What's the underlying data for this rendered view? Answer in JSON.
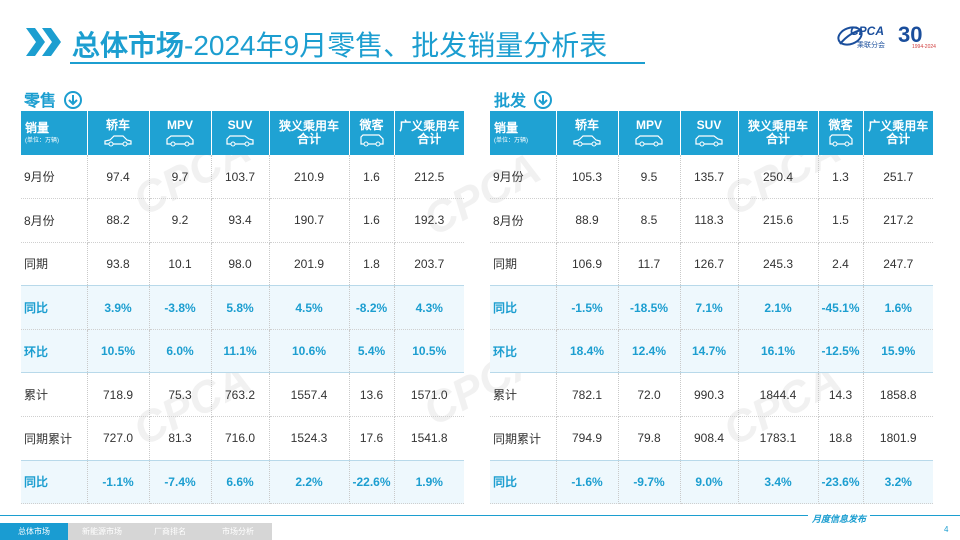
{
  "header": {
    "title_bold": "总体市场",
    "title_rest": "-2024年9月零售、批发销量分析表",
    "logo_text": "CPCA",
    "logo_sub": "乘联分会",
    "anniversary": "30",
    "anniversary_sub": "1994-2024"
  },
  "columns": {
    "row_header": "销量",
    "row_header_unit": "(单位：万辆)",
    "sedan": "轿车",
    "mpv": "MPV",
    "suv": "SUV",
    "narrow_l1": "狭义乘用车",
    "narrow_l2": "合计",
    "mini": "微客",
    "broad_l1": "广义乘用车",
    "broad_l2": "合计"
  },
  "retail": {
    "label": "零售",
    "rows": [
      {
        "label": "9月份",
        "sedan": "97.4",
        "mpv": "9.7",
        "suv": "103.7",
        "narrow": "210.9",
        "mini": "1.6",
        "broad": "212.5"
      },
      {
        "label": "8月份",
        "sedan": "88.2",
        "mpv": "9.2",
        "suv": "93.4",
        "narrow": "190.7",
        "mini": "1.6",
        "broad": "192.3"
      },
      {
        "label": "同期",
        "sedan": "93.8",
        "mpv": "10.1",
        "suv": "98.0",
        "narrow": "201.9",
        "mini": "1.8",
        "broad": "203.7"
      },
      {
        "label": "同比",
        "sedan": "3.9%",
        "mpv": "-3.8%",
        "suv": "5.8%",
        "narrow": "4.5%",
        "mini": "-8.2%",
        "broad": "4.3%"
      },
      {
        "label": "环比",
        "sedan": "10.5%",
        "mpv": "6.0%",
        "suv": "11.1%",
        "narrow": "10.6%",
        "mini": "5.4%",
        "broad": "10.5%"
      },
      {
        "label": "累计",
        "sedan": "718.9",
        "mpv": "75.3",
        "suv": "763.2",
        "narrow": "1557.4",
        "mini": "13.6",
        "broad": "1571.0"
      },
      {
        "label": "同期累计",
        "sedan": "727.0",
        "mpv": "81.3",
        "suv": "716.0",
        "narrow": "1524.3",
        "mini": "17.6",
        "broad": "1541.8"
      },
      {
        "label": "同比",
        "sedan": "-1.1%",
        "mpv": "-7.4%",
        "suv": "6.6%",
        "narrow": "2.2%",
        "mini": "-22.6%",
        "broad": "1.9%"
      }
    ]
  },
  "wholesale": {
    "label": "批发",
    "rows": [
      {
        "label": "9月份",
        "sedan": "105.3",
        "mpv": "9.5",
        "suv": "135.7",
        "narrow": "250.4",
        "mini": "1.3",
        "broad": "251.7"
      },
      {
        "label": "8月份",
        "sedan": "88.9",
        "mpv": "8.5",
        "suv": "118.3",
        "narrow": "215.6",
        "mini": "1.5",
        "broad": "217.2"
      },
      {
        "label": "同期",
        "sedan": "106.9",
        "mpv": "11.7",
        "suv": "126.7",
        "narrow": "245.3",
        "mini": "2.4",
        "broad": "247.7"
      },
      {
        "label": "同比",
        "sedan": "-1.5%",
        "mpv": "-18.5%",
        "suv": "7.1%",
        "narrow": "2.1%",
        "mini": "-45.1%",
        "broad": "1.6%"
      },
      {
        "label": "环比",
        "sedan": "18.4%",
        "mpv": "12.4%",
        "suv": "14.7%",
        "narrow": "16.1%",
        "mini": "-12.5%",
        "broad": "15.9%"
      },
      {
        "label": "累计",
        "sedan": "782.1",
        "mpv": "72.0",
        "suv": "990.3",
        "narrow": "1844.4",
        "mini": "14.3",
        "broad": "1858.8"
      },
      {
        "label": "同期累计",
        "sedan": "794.9",
        "mpv": "79.8",
        "suv": "908.4",
        "narrow": "1783.1",
        "mini": "18.8",
        "broad": "1801.9"
      },
      {
        "label": "同比",
        "sedan": "-1.6%",
        "mpv": "-9.7%",
        "suv": "9.0%",
        "narrow": "3.4%",
        "mini": "-23.6%",
        "broad": "3.2%"
      }
    ]
  },
  "footer": {
    "tabs": [
      "总体市场",
      "新能源市场",
      "厂商排名",
      "市场分析"
    ],
    "mark": "月度信息发布",
    "page": "4"
  },
  "colors": {
    "accent": "#1c9ed0",
    "header_bg": "#1fa2d3",
    "highlight_row_bg": "#eef8fd",
    "inactive_tab": "#d6d6d6"
  },
  "icons": [
    "chevron-right-icon",
    "down-arrow-circle-icon",
    "car-icon",
    "cpca-logo"
  ]
}
